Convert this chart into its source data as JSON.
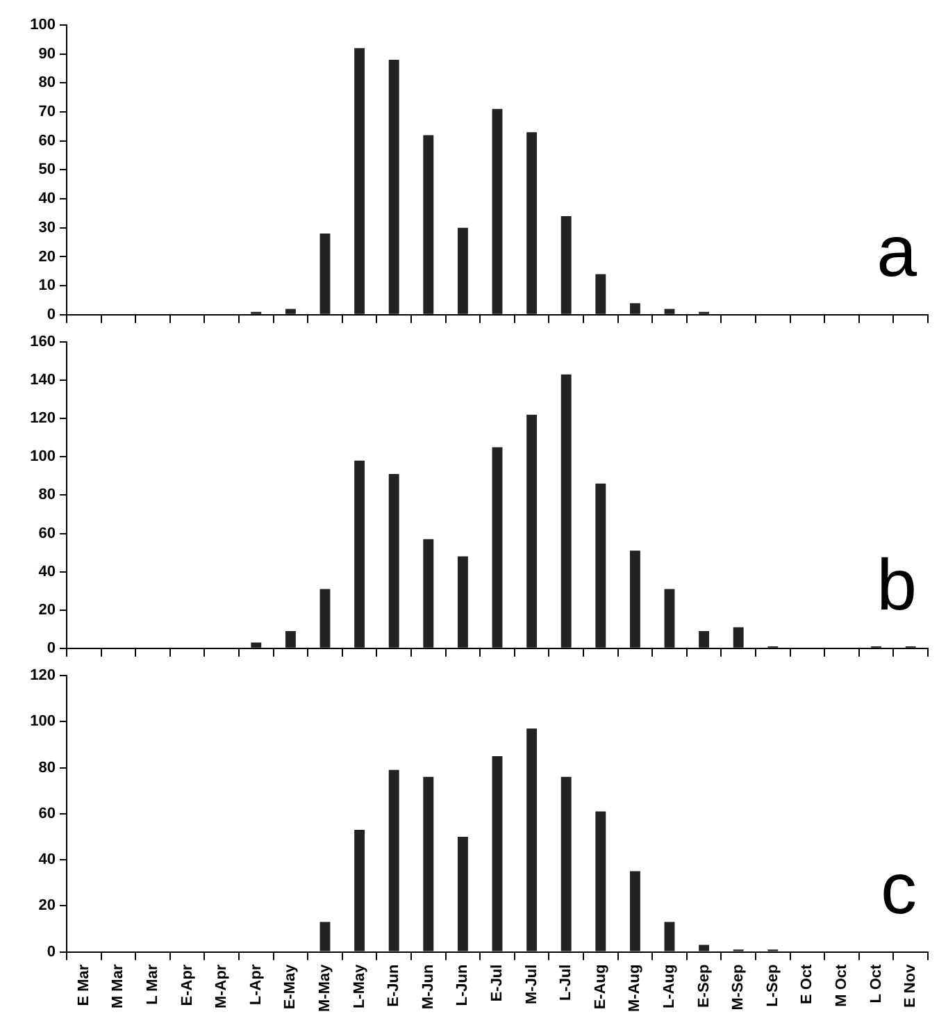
{
  "chart_data": [
    {
      "type": "bar",
      "annotations": [
        "a"
      ],
      "tick_labels": "y",
      "color": "#222222",
      "categories": [
        null,
        null,
        null,
        null,
        null,
        null,
        null,
        null,
        null,
        null,
        null,
        null,
        null,
        null,
        null,
        null,
        null,
        null,
        null,
        null,
        null,
        null,
        null,
        null,
        null
      ],
      "values": [
        0,
        0,
        0,
        0,
        0,
        1,
        2,
        28,
        92,
        88,
        62,
        30,
        71,
        63,
        34,
        14,
        4,
        2,
        1,
        0,
        0,
        0,
        0,
        0,
        0
      ],
      "ylim": [
        0,
        100
      ],
      "yticks": [
        0,
        10,
        20,
        30,
        40,
        50,
        60,
        70,
        80,
        90,
        100
      ]
    },
    {
      "type": "bar",
      "annotations": [
        "b"
      ],
      "tick_labels": "y",
      "color": "#222222",
      "categories": [
        null,
        null,
        null,
        null,
        null,
        null,
        null,
        null,
        null,
        null,
        null,
        null,
        null,
        null,
        null,
        null,
        null,
        null,
        null,
        null,
        null,
        null,
        null,
        null,
        null
      ],
      "values": [
        0,
        0,
        0,
        0,
        0,
        3,
        9,
        31,
        98,
        91,
        57,
        48,
        105,
        122,
        143,
        86,
        51,
        31,
        9,
        11,
        1,
        0,
        0,
        1,
        1
      ],
      "ylim": [
        0,
        160
      ],
      "yticks": [
        0,
        20,
        40,
        60,
        80,
        100,
        120,
        140,
        160
      ]
    },
    {
      "type": "bar",
      "annotations": [
        "c"
      ],
      "color": "#222222",
      "categories": [
        "E Mar",
        "M Mar",
        "L Mar",
        "E-Apr",
        "M-Apr",
        "L-Apr",
        "E-May",
        "M-May",
        "L-May",
        "E-Jun",
        "M-Jun",
        "L-Jun",
        "E-Jul",
        "M-Jul",
        "L-Jul",
        "E-Aug",
        "M-Aug",
        "L-Aug",
        "E-Sep",
        "M-Sep",
        "L-Sep",
        "E Oct",
        "M Oct",
        "L Oct",
        "E Nov"
      ],
      "values": [
        0,
        0,
        0,
        0,
        0,
        0,
        0,
        13,
        53,
        79,
        76,
        50,
        85,
        97,
        76,
        61,
        35,
        13,
        3,
        1,
        1,
        0,
        0,
        0,
        0
      ],
      "ylim": [
        0,
        120
      ],
      "yticks": [
        0,
        20,
        40,
        60,
        80,
        100,
        120
      ]
    }
  ]
}
